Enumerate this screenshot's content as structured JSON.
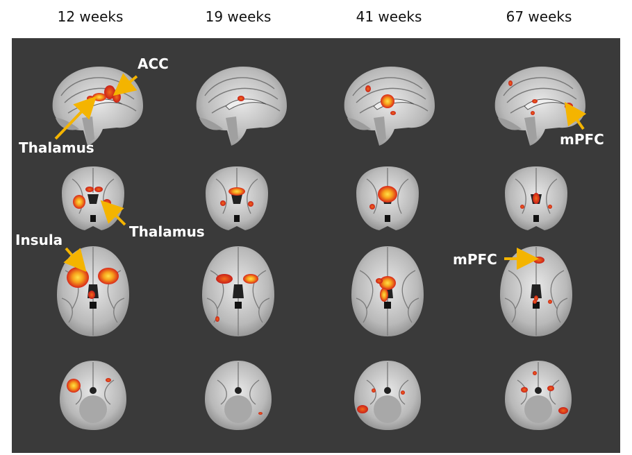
{
  "columns": [
    "12 weeks",
    "19 weeks",
    "41 weeks",
    "67 weeks"
  ],
  "rows": [
    "sagittal",
    "coronal",
    "axial-upper",
    "axial-lower"
  ],
  "colors": {
    "panel": "#3a3a3a",
    "arrow": "#f4b400",
    "activation_core": "#ffd23a",
    "activation_edge": "#e0301e"
  },
  "annotations": {
    "acc": "ACC",
    "thalamus_sagittal": "Thalamus",
    "thalamus_coronal": "Thalamus",
    "insula": "Insula",
    "mpfc_sagittal": "mPFC",
    "mpfc_axial": "mPFC"
  }
}
